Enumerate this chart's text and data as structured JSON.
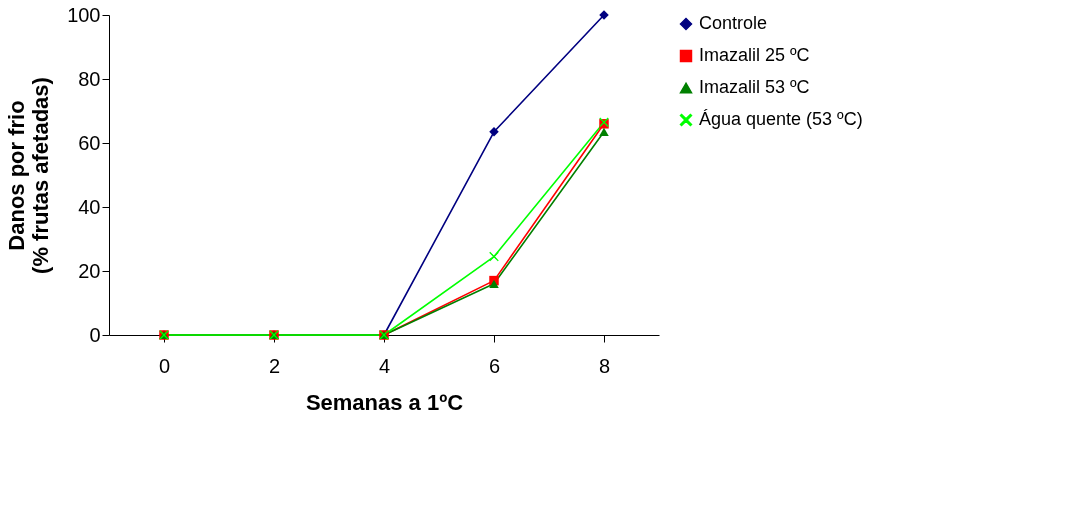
{
  "chart_data": {
    "type": "line",
    "xlabel": "Semanas a 1ºC",
    "ylabel": "Danos por frio\n(% frutas afetadas)",
    "categories": [
      "0",
      "2",
      "4",
      "6",
      "8"
    ],
    "ylim": [
      0,
      100
    ],
    "yticks": [
      0,
      20,
      40,
      60,
      80,
      100
    ],
    "grid": false,
    "legend": "right",
    "line_style": "solid",
    "series": [
      {
        "name": "Controle",
        "color": "#000080",
        "marker": "diamond",
        "values": [
          0,
          0,
          0,
          63.5,
          100
        ]
      },
      {
        "name": "Imazalil 25 ºC",
        "color": "#ff0000",
        "marker": "square",
        "values": [
          0,
          0,
          0,
          17,
          66
        ]
      },
      {
        "name": "Imazalil 53 ºC",
        "color": "#008000",
        "marker": "triangle",
        "values": [
          0,
          0,
          0,
          16,
          63.5
        ]
      },
      {
        "name": "Água quente (53 ºC)",
        "color": "#00ff00",
        "marker": "cross",
        "values": [
          0,
          0,
          0,
          24.5,
          66.5
        ]
      }
    ]
  }
}
